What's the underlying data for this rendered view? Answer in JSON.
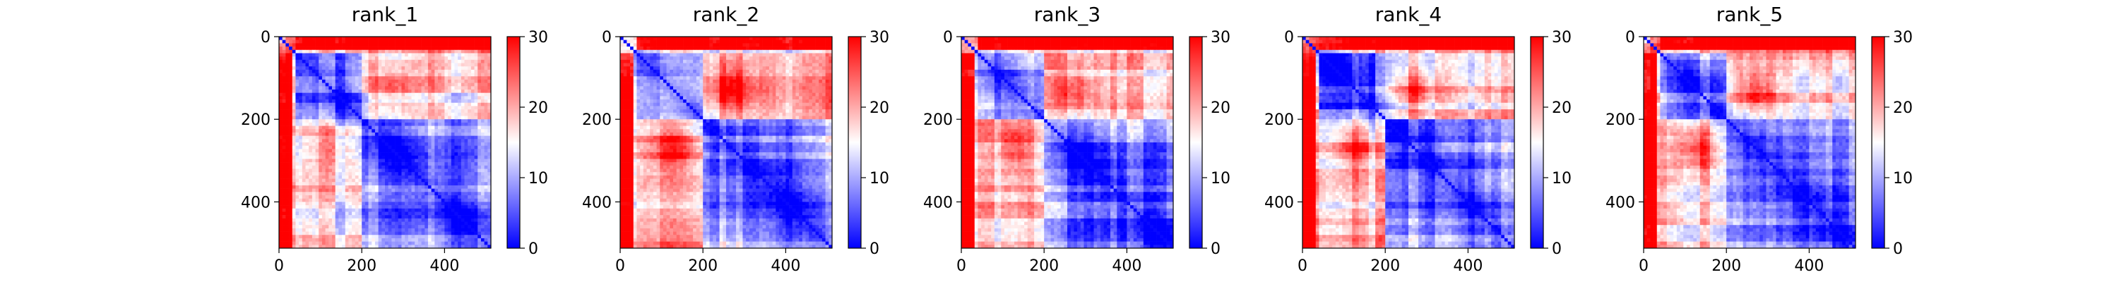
{
  "chart_data": [
    {
      "type": "heatmap",
      "title": "rank_1",
      "xlim": [
        0,
        512
      ],
      "ylim": [
        512,
        0
      ],
      "xticks": [
        0,
        200,
        400
      ],
      "yticks": [
        0,
        200,
        400
      ],
      "colorbar": {
        "ticks": [
          0,
          10,
          20,
          30
        ],
        "range": [
          0,
          30
        ],
        "colormap": "bwr"
      },
      "domains": [
        [
          0,
          40
        ],
        [
          40,
          200
        ],
        [
          200,
          512
        ]
      ]
    },
    {
      "type": "heatmap",
      "title": "rank_2",
      "xlim": [
        0,
        512
      ],
      "ylim": [
        512,
        0
      ],
      "xticks": [
        0,
        200,
        400
      ],
      "yticks": [
        0,
        200,
        400
      ],
      "colorbar": {
        "ticks": [
          0,
          10,
          20,
          30
        ],
        "range": [
          0,
          30
        ],
        "colormap": "bwr"
      },
      "domains": [
        [
          0,
          40
        ],
        [
          40,
          200
        ],
        [
          200,
          512
        ]
      ]
    },
    {
      "type": "heatmap",
      "title": "rank_3",
      "xlim": [
        0,
        512
      ],
      "ylim": [
        512,
        0
      ],
      "xticks": [
        0,
        200,
        400
      ],
      "yticks": [
        0,
        200,
        400
      ],
      "colorbar": {
        "ticks": [
          0,
          10,
          20,
          30
        ],
        "range": [
          0,
          30
        ],
        "colormap": "bwr"
      },
      "domains": [
        [
          0,
          40
        ],
        [
          40,
          200
        ],
        [
          200,
          512
        ]
      ]
    },
    {
      "type": "heatmap",
      "title": "rank_4",
      "xlim": [
        0,
        512
      ],
      "ylim": [
        512,
        0
      ],
      "xticks": [
        0,
        200,
        400
      ],
      "yticks": [
        0,
        200,
        400
      ],
      "colorbar": {
        "ticks": [
          0,
          10,
          20,
          30
        ],
        "range": [
          0,
          30
        ],
        "colormap": "bwr"
      },
      "domains": [
        [
          0,
          40
        ],
        [
          40,
          200
        ],
        [
          200,
          512
        ]
      ]
    },
    {
      "type": "heatmap",
      "title": "rank_5",
      "xlim": [
        0,
        512
      ],
      "ylim": [
        512,
        0
      ],
      "xticks": [
        0,
        200,
        400
      ],
      "yticks": [
        0,
        200,
        400
      ],
      "colorbar": {
        "ticks": [
          0,
          10,
          20,
          30
        ],
        "range": [
          0,
          30
        ],
        "colormap": "bwr"
      },
      "domains": [
        [
          0,
          40
        ],
        [
          40,
          200
        ],
        [
          200,
          512
        ]
      ]
    }
  ],
  "colors": {
    "low": "#0000ff",
    "mid": "#ffffff",
    "high": "#ff0000"
  }
}
